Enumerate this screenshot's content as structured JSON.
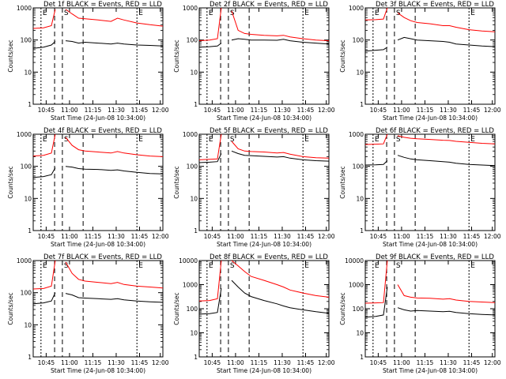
{
  "page": {
    "background": "#ffffff"
  },
  "colors": {
    "events": "#000000",
    "lld": "#ff0000",
    "axes": "#000000"
  },
  "chart_data": [
    {
      "type": "line",
      "title": "Det 1f BLACK = Events, RED = LLD",
      "xlabel": "Start Time (24-Jun-08 10:34:00)",
      "ylabel": "Counts/sec",
      "yscale": "log",
      "ylim": [
        1,
        1000
      ],
      "xticks": [
        "10:45",
        "11:00",
        "11:15",
        "11:30",
        "11:45",
        "12:00"
      ],
      "xlim_min": [
        0,
        100
      ],
      "marker_labels": [
        "E",
        "S",
        "E"
      ],
      "series": [
        {
          "color": "red",
          "t": [
            0,
            8,
            14,
            17,
            18,
            22,
            25,
            30,
            35,
            40,
            50,
            60,
            65,
            70,
            80,
            90,
            100
          ],
          "values": [
            230,
            240,
            280,
            900,
            null,
            null,
            900,
            650,
            480,
            460,
            420,
            380,
            480,
            420,
            340,
            300,
            270
          ]
        },
        {
          "color": "black",
          "t": [
            0,
            8,
            14,
            17,
            18,
            22,
            25,
            30,
            35,
            40,
            50,
            60,
            65,
            70,
            80,
            90,
            100
          ],
          "values": [
            55,
            60,
            70,
            90,
            null,
            null,
            95,
            90,
            80,
            85,
            80,
            75,
            80,
            75,
            70,
            68,
            65
          ]
        }
      ]
    },
    {
      "type": "line",
      "title": "Det 2f BLACK = Events, RED = LLD",
      "xlabel": "Start Time (24-Jun-08 10:34:00)",
      "ylabel": "Counts/sec",
      "yscale": "log",
      "ylim": [
        1,
        1000
      ],
      "xticks": [
        "10:45",
        "11:00",
        "11:15",
        "11:30",
        "11:45",
        "12:00"
      ],
      "xlim_min": [
        0,
        100
      ],
      "marker_labels": [
        "E",
        "S",
        "E"
      ],
      "series": [
        {
          "color": "red",
          "t": [
            0,
            8,
            14,
            17,
            18,
            22,
            25,
            30,
            35,
            40,
            50,
            60,
            65,
            70,
            80,
            90,
            100
          ],
          "values": [
            95,
            100,
            110,
            1000,
            null,
            null,
            800,
            200,
            160,
            150,
            140,
            135,
            140,
            125,
            110,
            100,
            95
          ]
        },
        {
          "color": "black",
          "t": [
            0,
            8,
            14,
            17,
            18,
            22,
            25,
            30,
            35,
            40,
            50,
            60,
            65,
            70,
            80,
            90,
            100
          ],
          "values": [
            60,
            62,
            65,
            80,
            null,
            null,
            100,
            110,
            105,
            100,
            100,
            98,
            105,
            95,
            85,
            80,
            75
          ]
        }
      ]
    },
    {
      "type": "line",
      "title": "Det 3f BLACK = Events, RED = LLD",
      "xlabel": "Start Time (24-Jun-08 10:34:00)",
      "ylabel": "Counts/sec",
      "yscale": "log",
      "ylim": [
        1,
        1000
      ],
      "xticks": [
        "10:45",
        "11:00",
        "11:15",
        "11:30",
        "11:45",
        "12:00"
      ],
      "xlim_min": [
        0,
        100
      ],
      "marker_labels": [
        "E",
        "S",
        "E"
      ],
      "series": [
        {
          "color": "red",
          "t": [
            0,
            8,
            14,
            17,
            18,
            22,
            25,
            30,
            35,
            40,
            50,
            60,
            65,
            70,
            80,
            90,
            100
          ],
          "values": [
            420,
            430,
            450,
            1000,
            null,
            null,
            700,
            500,
            400,
            350,
            320,
            280,
            280,
            250,
            210,
            190,
            180
          ]
        },
        {
          "color": "black",
          "t": [
            0,
            8,
            14,
            17,
            18,
            22,
            25,
            30,
            35,
            40,
            50,
            60,
            65,
            70,
            80,
            90,
            100
          ],
          "values": [
            45,
            48,
            50,
            60,
            null,
            null,
            100,
            120,
            110,
            100,
            95,
            90,
            85,
            75,
            70,
            65,
            62
          ]
        }
      ]
    },
    {
      "type": "line",
      "title": "Det 4f BLACK = Events, RED = LLD",
      "xlabel": "Start Time (24-Jun-08 10:34:00)",
      "ylabel": "Counts/sec",
      "yscale": "log",
      "ylim": [
        1,
        1000
      ],
      "xticks": [
        "10:45",
        "11:00",
        "11:15",
        "11:30",
        "11:45",
        "12:00"
      ],
      "xlim_min": [
        0,
        100
      ],
      "marker_labels": [
        "E",
        "S",
        "E"
      ],
      "series": [
        {
          "color": "red",
          "t": [
            0,
            8,
            14,
            17,
            18,
            22,
            25,
            30,
            35,
            40,
            50,
            60,
            65,
            70,
            80,
            90,
            100
          ],
          "values": [
            210,
            220,
            260,
            1000,
            null,
            null,
            800,
            450,
            330,
            300,
            280,
            260,
            290,
            260,
            230,
            210,
            200
          ]
        },
        {
          "color": "black",
          "t": [
            0,
            8,
            14,
            17,
            18,
            22,
            25,
            30,
            35,
            40,
            50,
            60,
            65,
            70,
            80,
            90,
            100
          ],
          "values": [
            45,
            48,
            55,
            90,
            null,
            null,
            100,
            95,
            85,
            82,
            80,
            75,
            78,
            72,
            65,
            60,
            58
          ]
        }
      ]
    },
    {
      "type": "line",
      "title": "Det 5f BLACK = Events, RED = LLD",
      "xlabel": "Start Time (24-Jun-08 10:34:00)",
      "ylabel": "Counts/sec",
      "yscale": "log",
      "ylim": [
        1,
        1000
      ],
      "xticks": [
        "10:45",
        "11:00",
        "11:15",
        "11:30",
        "11:45",
        "12:00"
      ],
      "xlim_min": [
        0,
        100
      ],
      "marker_labels": [
        "E",
        "S",
        "E"
      ],
      "series": [
        {
          "color": "red",
          "t": [
            0,
            8,
            14,
            17,
            18,
            22,
            25,
            30,
            35,
            40,
            50,
            60,
            65,
            70,
            80,
            90,
            100
          ],
          "values": [
            160,
            165,
            170,
            1000,
            null,
            null,
            600,
            350,
            300,
            290,
            280,
            260,
            270,
            240,
            200,
            185,
            180
          ]
        },
        {
          "color": "black",
          "t": [
            0,
            8,
            14,
            17,
            18,
            22,
            25,
            30,
            35,
            40,
            50,
            60,
            65,
            70,
            80,
            90,
            100
          ],
          "values": [
            130,
            135,
            140,
            250,
            null,
            null,
            300,
            250,
            220,
            215,
            205,
            195,
            200,
            180,
            160,
            150,
            145
          ]
        }
      ]
    },
    {
      "type": "line",
      "title": "Det 6f BLACK = Events, RED = LLD",
      "xlabel": "Start Time (24-Jun-08 10:34:00)",
      "ylabel": "Counts/sec",
      "yscale": "log",
      "ylim": [
        1,
        1000
      ],
      "xticks": [
        "10:45",
        "11:00",
        "11:15",
        "11:30",
        "11:45",
        "12:00"
      ],
      "xlim_min": [
        0,
        100
      ],
      "marker_labels": [
        "E",
        "S",
        "E"
      ],
      "series": [
        {
          "color": "red",
          "t": [
            0,
            8,
            14,
            17,
            18,
            22,
            25,
            30,
            35,
            40,
            50,
            60,
            65,
            70,
            80,
            90,
            100
          ],
          "values": [
            480,
            490,
            500,
            1000,
            null,
            null,
            900,
            800,
            750,
            720,
            690,
            650,
            640,
            600,
            560,
            520,
            500
          ]
        },
        {
          "color": "black",
          "t": [
            0,
            8,
            14,
            17,
            18,
            22,
            25,
            30,
            35,
            40,
            50,
            60,
            65,
            70,
            80,
            90,
            100
          ],
          "values": [
            110,
            112,
            115,
            150,
            null,
            null,
            220,
            190,
            170,
            160,
            150,
            140,
            135,
            125,
            115,
            110,
            105
          ]
        }
      ]
    },
    {
      "type": "line",
      "title": "Det 7f BLACK = Events, RED = LLD",
      "xlabel": "Start Time (24-Jun-08 10:34:00)",
      "ylabel": "Counts/sec",
      "yscale": "log",
      "ylim": [
        1,
        1000
      ],
      "xticks": [
        "10:45",
        "11:00",
        "11:15",
        "11:30",
        "11:45",
        "12:00"
      ],
      "xlim_min": [
        0,
        100
      ],
      "marker_labels": [
        "E",
        "S",
        "E"
      ],
      "series": [
        {
          "color": "red",
          "t": [
            0,
            8,
            14,
            17,
            18,
            22,
            25,
            30,
            35,
            40,
            50,
            60,
            65,
            70,
            80,
            90,
            100
          ],
          "values": [
            130,
            135,
            160,
            1000,
            null,
            null,
            900,
            400,
            260,
            230,
            210,
            190,
            210,
            180,
            160,
            150,
            140
          ]
        },
        {
          "color": "black",
          "t": [
            0,
            8,
            14,
            17,
            18,
            22,
            25,
            30,
            35,
            40,
            50,
            60,
            65,
            70,
            80,
            90,
            100
          ],
          "values": [
            45,
            48,
            55,
            100,
            null,
            null,
            95,
            85,
            70,
            68,
            65,
            62,
            65,
            60,
            55,
            52,
            50
          ]
        }
      ]
    },
    {
      "type": "line",
      "title": "Det 8f BLACK = Events, RED = LLD",
      "xlabel": "Start Time (24-Jun-08 10:34:00)",
      "ylabel": "Counts/sec",
      "yscale": "log",
      "ylim": [
        1,
        10000
      ],
      "xticks": [
        "10:45",
        "11:00",
        "11:15",
        "11:30",
        "11:45",
        "12:00"
      ],
      "xlim_min": [
        0,
        100
      ],
      "marker_labels": [
        "E",
        "S",
        "E"
      ],
      "series": [
        {
          "color": "red",
          "t": [
            0,
            8,
            14,
            17,
            18,
            22,
            25,
            30,
            35,
            40,
            50,
            60,
            65,
            70,
            80,
            90,
            100
          ],
          "values": [
            210,
            220,
            260,
            10000,
            null,
            null,
            10000,
            6000,
            3500,
            2200,
            1500,
            1000,
            800,
            600,
            450,
            350,
            300
          ]
        },
        {
          "color": "black",
          "t": [
            0,
            8,
            14,
            17,
            18,
            22,
            25,
            30,
            35,
            40,
            50,
            60,
            65,
            70,
            80,
            90,
            100
          ],
          "values": [
            60,
            62,
            70,
            700,
            null,
            null,
            1500,
            800,
            450,
            320,
            220,
            160,
            130,
            110,
            90,
            75,
            65
          ]
        }
      ]
    },
    {
      "type": "line",
      "title": "Det 9f BLACK = Events, RED = LLD",
      "xlabel": "Start Time (24-Jun-08 10:34:00)",
      "ylabel": "Counts/sec",
      "yscale": "log",
      "ylim": [
        1,
        10000
      ],
      "xticks": [
        "10:45",
        "11:00",
        "11:15",
        "11:30",
        "11:45",
        "12:00"
      ],
      "xlim_min": [
        0,
        100
      ],
      "marker_labels": [
        "E",
        "S",
        "E"
      ],
      "series": [
        {
          "color": "red",
          "t": [
            0,
            8,
            14,
            17,
            18,
            22,
            25,
            30,
            35,
            40,
            50,
            60,
            65,
            70,
            80,
            90,
            100
          ],
          "values": [
            170,
            175,
            180,
            10000,
            null,
            null,
            1000,
            350,
            300,
            280,
            270,
            250,
            260,
            230,
            200,
            190,
            180
          ]
        },
        {
          "color": "black",
          "t": [
            0,
            8,
            14,
            17,
            18,
            22,
            25,
            30,
            35,
            40,
            50,
            60,
            65,
            70,
            80,
            90,
            100
          ],
          "values": [
            45,
            48,
            55,
            800,
            null,
            null,
            110,
            90,
            80,
            85,
            80,
            75,
            78,
            70,
            62,
            58,
            55
          ]
        }
      ]
    }
  ]
}
